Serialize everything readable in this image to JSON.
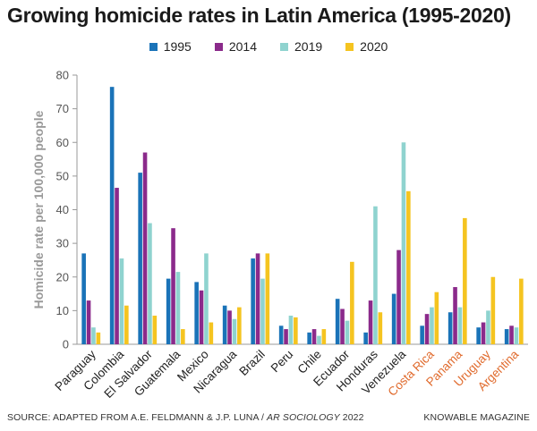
{
  "title": "Growing homicide rates in Latin America (1995-2020)",
  "source": {
    "prefix": "SOURCE: ADAPTED FROM A.E. FELDMANN & J.P. LUNA / ",
    "journal": "AR SOCIOLOGY",
    "suffix": " 2022"
  },
  "brand": "KNOWABLE MAGAZINE",
  "colors": {
    "series": [
      "#1a73b8",
      "#8b2a8b",
      "#8fd3cf",
      "#f5c420"
    ],
    "highlight_label": "#e06a2c",
    "axis_text": "#555555",
    "grid": "#cccccc"
  },
  "chart_data": {
    "type": "bar",
    "ylabel": "Homicide rate per 100,000 people",
    "ylim": [
      0,
      80
    ],
    "yticks": [
      0,
      10,
      20,
      30,
      40,
      50,
      60,
      70,
      80
    ],
    "legend_position": "top",
    "categories": [
      "Paraguay",
      "Colombia",
      "El Salvador",
      "Guatemala",
      "Mexico",
      "Nicaragua",
      "Brazil",
      "Peru",
      "Chile",
      "Ecuador",
      "Honduras",
      "Venezuela",
      "Costa Rica",
      "Panama",
      "Uruguay",
      "Argentina"
    ],
    "highlighted_categories": [
      "Costa Rica",
      "Panama",
      "Uruguay",
      "Argentina"
    ],
    "series": [
      {
        "name": "1995",
        "values": [
          27,
          76.5,
          51,
          19.5,
          18.5,
          11.5,
          25.5,
          5.5,
          3.5,
          13.5,
          3.5,
          15,
          5.5,
          9.5,
          5,
          4.5
        ]
      },
      {
        "name": "2014",
        "values": [
          13,
          46.5,
          57,
          34.5,
          16,
          10,
          27,
          4.5,
          4.5,
          10.5,
          13,
          28,
          9,
          17,
          6.5,
          5.5
        ]
      },
      {
        "name": "2019",
        "values": [
          5,
          25.5,
          36,
          21.5,
          27,
          7.5,
          19.5,
          8.5,
          2.5,
          7,
          41,
          60,
          11,
          11,
          10,
          5
        ]
      },
      {
        "name": "2020",
        "values": [
          3.5,
          11.5,
          8.5,
          4.5,
          6.5,
          11,
          27,
          8,
          4.5,
          24.5,
          9.5,
          45.5,
          15.5,
          37.5,
          20,
          19.5
        ]
      }
    ]
  }
}
